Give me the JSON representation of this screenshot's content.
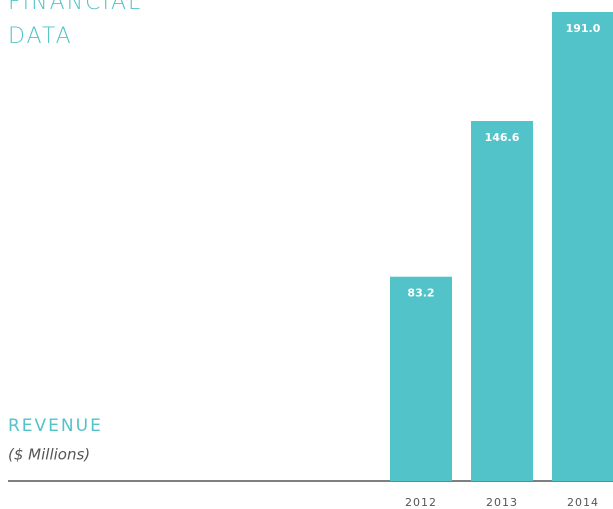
{
  "chart_data": {
    "type": "bar",
    "title": "FINANCIAL DATA",
    "ylabel": "REVENUE",
    "subtitle": "($ Millions)",
    "categories": [
      "2012",
      "2013",
      "2014"
    ],
    "values": [
      83.2,
      146.6,
      191.0
    ],
    "value_labels": [
      "83.2",
      "146.6",
      "191.0"
    ],
    "color": "#52c3c8",
    "ylim": [
      0,
      191
    ]
  }
}
